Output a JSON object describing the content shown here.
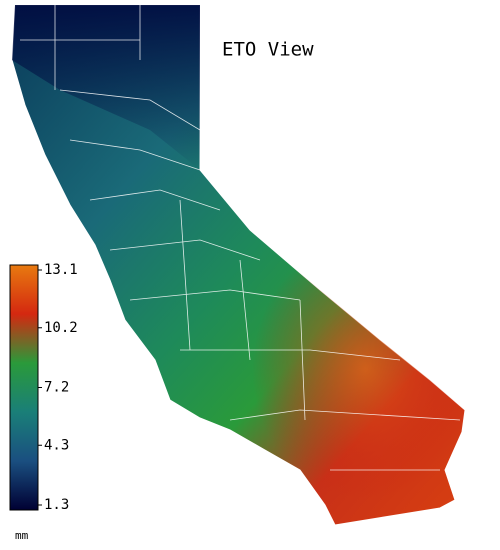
{
  "map": {
    "title": "ETO View",
    "colorbar": {
      "unit": "mm",
      "lim": [
        1.3,
        13.1
      ],
      "ticks": [
        1.3,
        4.3,
        7.2,
        10.2,
        13.1
      ],
      "colors": [
        "#000033",
        "#1a4f80",
        "#1a7f78",
        "#2a9a3a",
        "#d42810",
        "#e87a10"
      ]
    }
  }
}
